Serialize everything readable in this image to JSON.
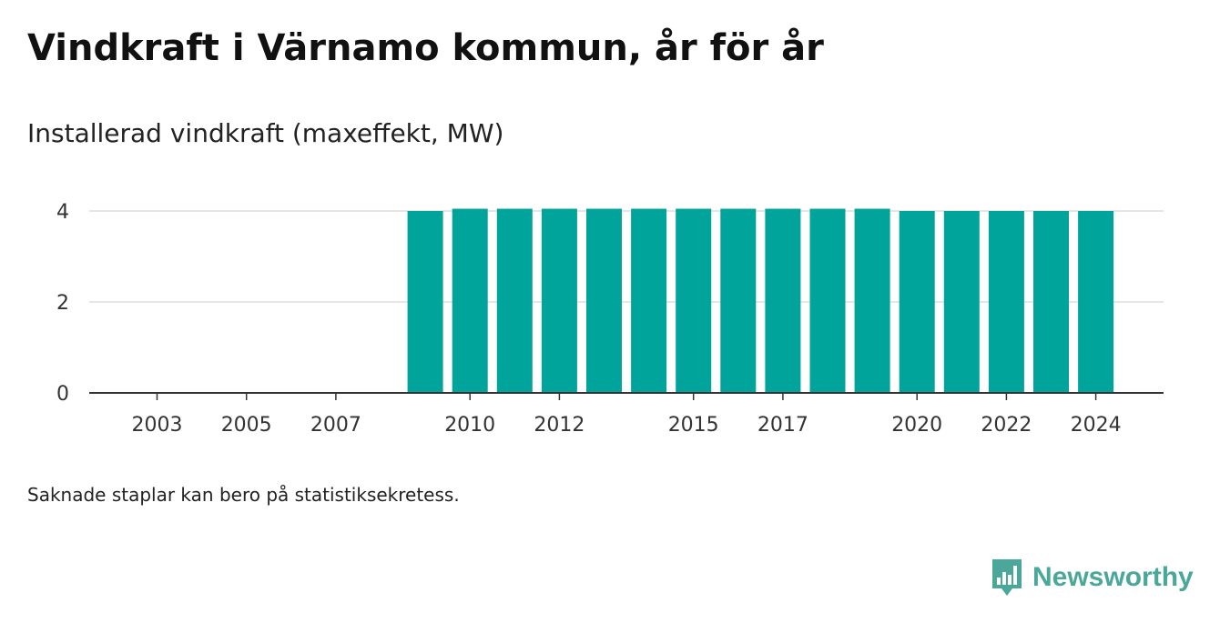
{
  "header": {
    "title": "Vindkraft i Värnamo kommun, år för år",
    "subtitle": "Installerad vindkraft (maxeffekt, MW)"
  },
  "footnote": "Saknade staplar kan bero på statistiksekretess.",
  "brand": {
    "name": "Newsworthy",
    "icon": "bar-chart-speech-bubble-icon",
    "color": "#4aa79a"
  },
  "chart_data": {
    "type": "bar",
    "title": "Vindkraft i Värnamo kommun, år för år",
    "subtitle": "Installerad vindkraft (maxeffekt, MW)",
    "xlabel": "",
    "ylabel": "",
    "categories": [
      2002,
      2003,
      2004,
      2005,
      2006,
      2007,
      2008,
      2009,
      2010,
      2011,
      2012,
      2013,
      2014,
      2015,
      2016,
      2017,
      2018,
      2019,
      2020,
      2021,
      2022,
      2023,
      2024
    ],
    "values": [
      null,
      null,
      null,
      null,
      null,
      null,
      null,
      4.0,
      4.05,
      4.05,
      4.05,
      4.05,
      4.05,
      4.05,
      4.05,
      4.05,
      4.05,
      4.05,
      4.0,
      4.0,
      4.0,
      4.0,
      4.0
    ],
    "x_tick_labels": [
      "2003",
      "2005",
      "2007",
      "2010",
      "2012",
      "2015",
      "2017",
      "2020",
      "2022",
      "2024"
    ],
    "y_ticks": [
      "0",
      "2",
      "4"
    ],
    "ylim": [
      0,
      4.05
    ],
    "grid": true,
    "bar_color": "#00a49a"
  }
}
